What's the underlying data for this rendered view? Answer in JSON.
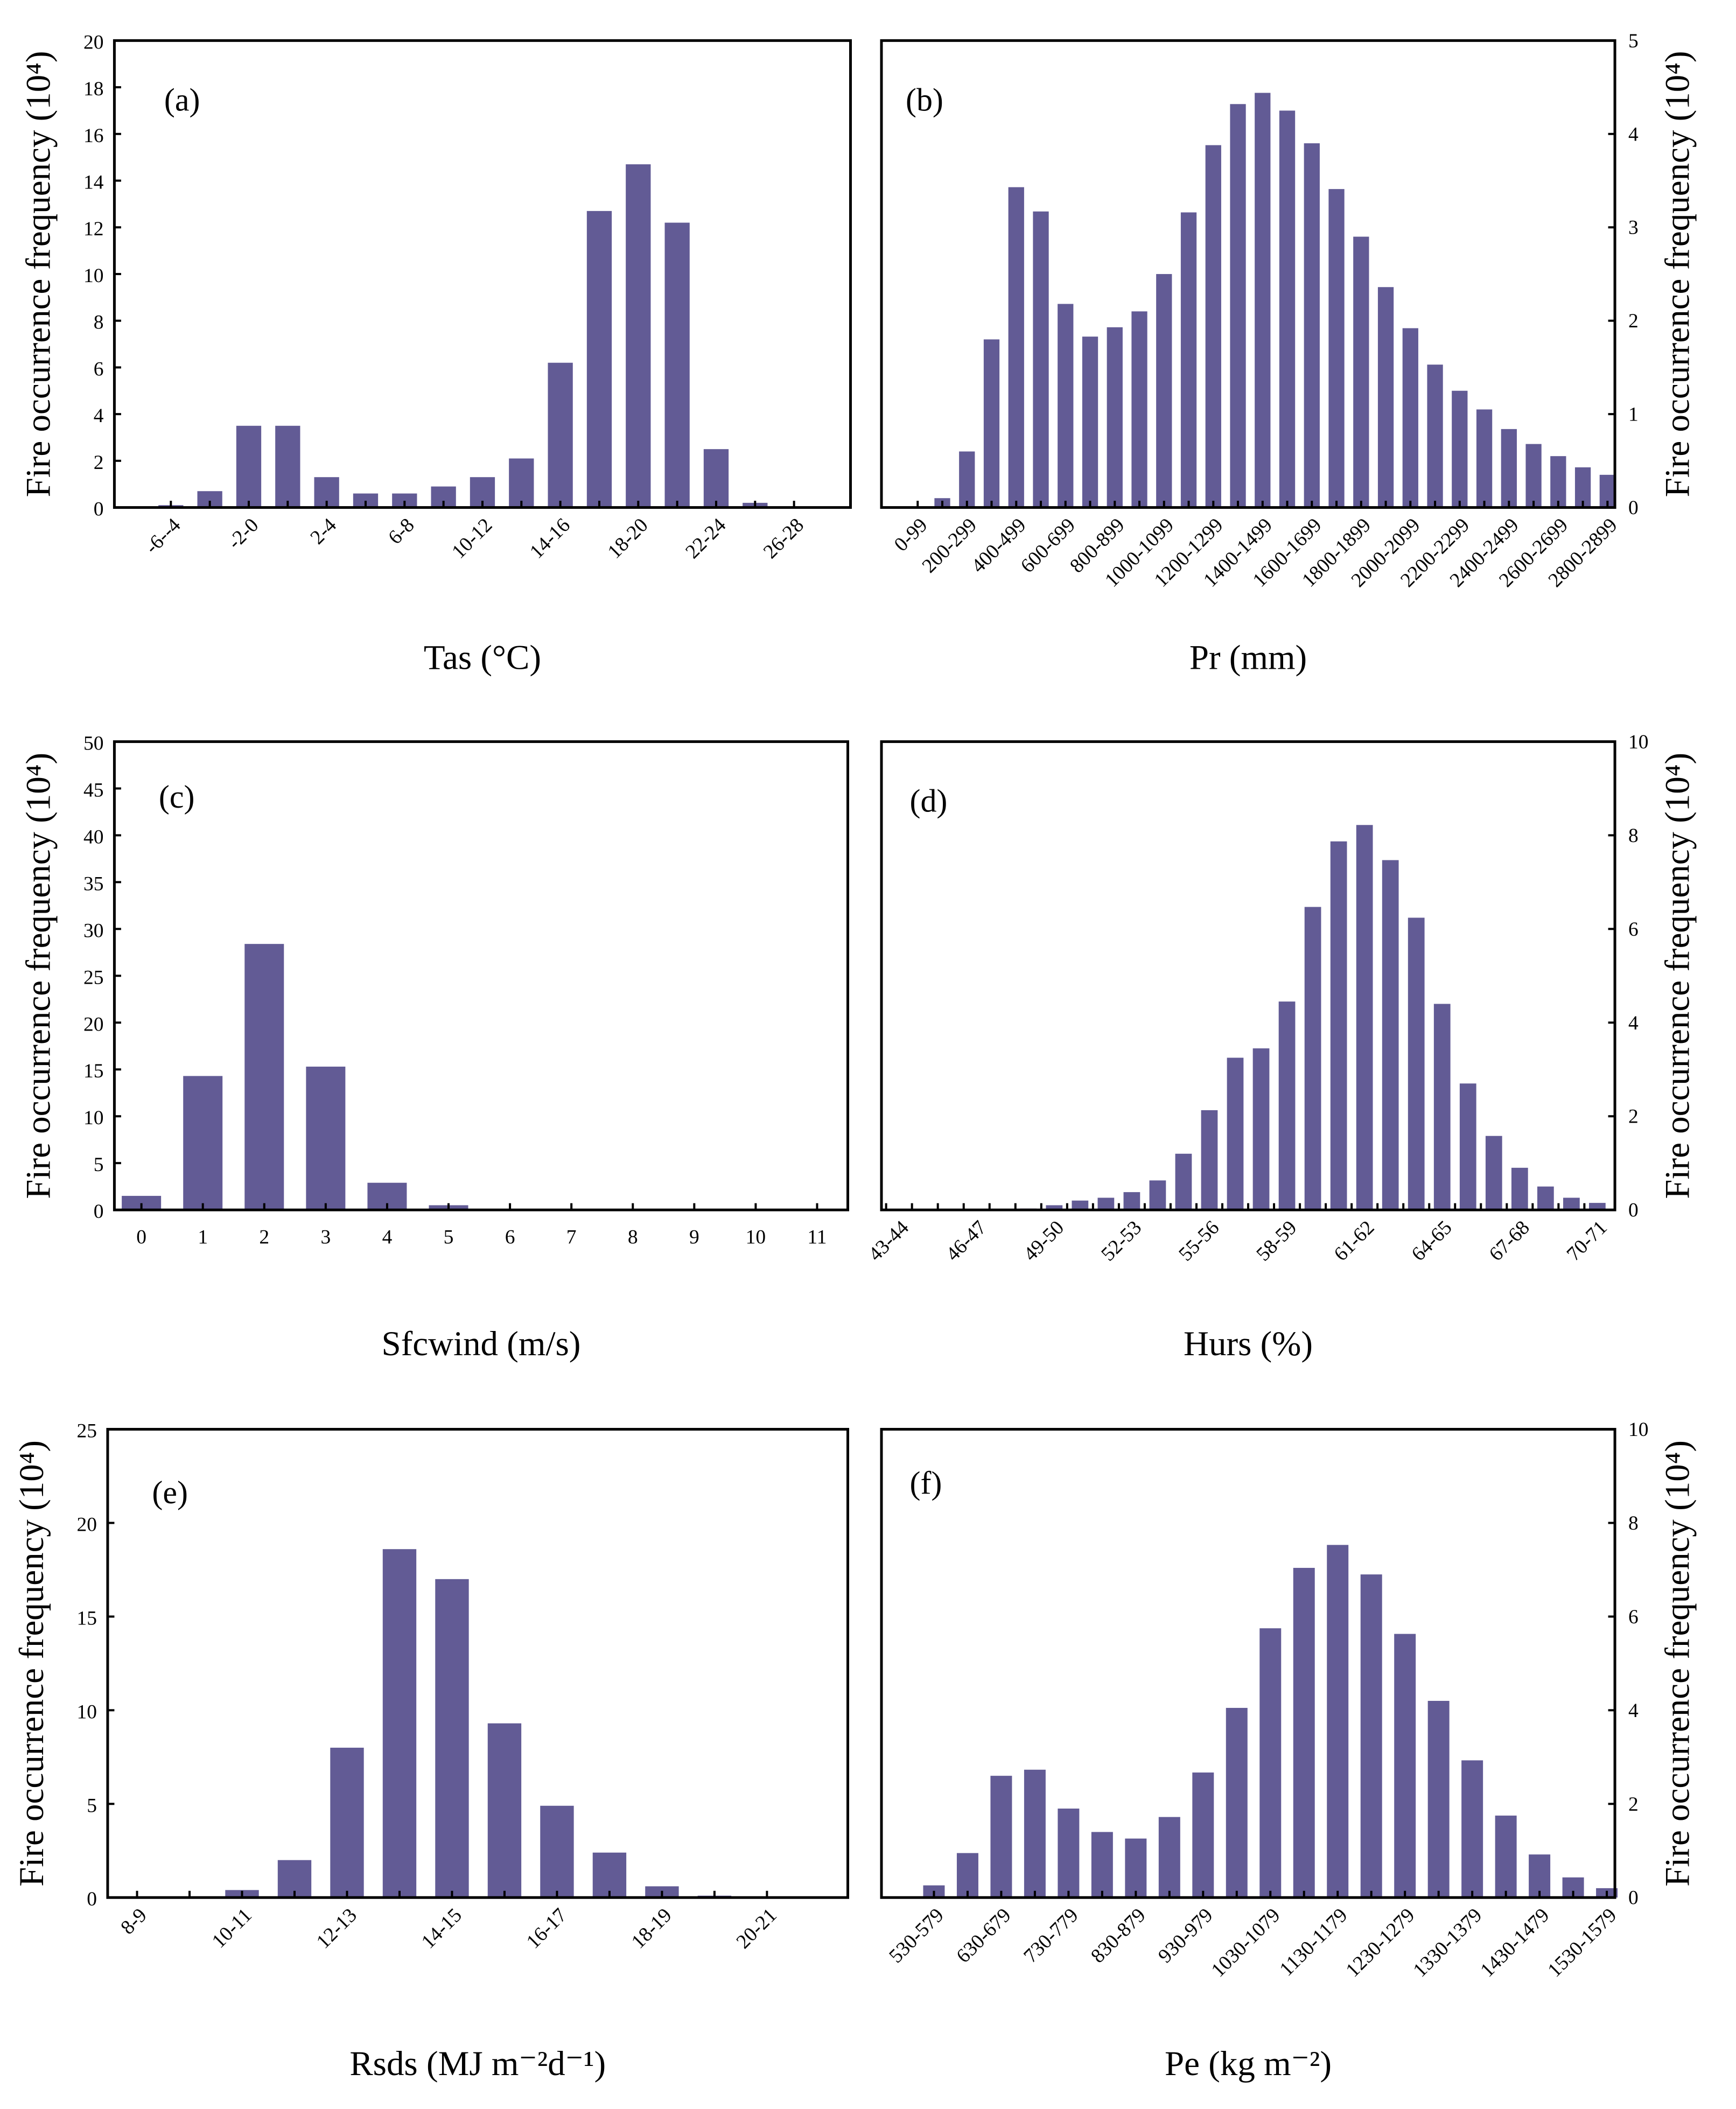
{
  "chart_data": [
    {
      "id": "a",
      "type": "bar",
      "panel_label": "(a)",
      "xlabel": "Tas (°C)",
      "ylabel": "Fire occurrence frequency (10⁴)",
      "yaxis": "left",
      "ylim": [
        0,
        20
      ],
      "ystep": 2,
      "label_every": 2,
      "categories": [
        "-6--4",
        "-4--2",
        "-2-0",
        "0-2",
        "2-4",
        "4-6",
        "6-8",
        "8-10",
        "10-12",
        "12-14",
        "14-16",
        "16-18",
        "18-20",
        "20-22",
        "22-24",
        "24-26",
        "26-28"
      ],
      "values": [
        0.1,
        0.7,
        3.5,
        3.5,
        1.3,
        0.6,
        0.6,
        0.9,
        1.3,
        2.1,
        6.2,
        12.7,
        14.7,
        12.2,
        2.5,
        0.2,
        0
      ]
    },
    {
      "id": "b",
      "type": "bar",
      "panel_label": "(b)",
      "xlabel": "Pr (mm)",
      "ylabel": "Fire occurrence frequency (10⁴)",
      "yaxis": "right",
      "ylim": [
        0,
        5
      ],
      "ystep": 1,
      "label_every": 2,
      "categories": [
        "0-99",
        "100-199",
        "200-299",
        "300-399",
        "400-499",
        "500-599",
        "600-699",
        "700-799",
        "800-899",
        "900-999",
        "1000-1099",
        "1100-1199",
        "1200-1299",
        "1300-1399",
        "1400-1499",
        "1500-1599",
        "1600-1699",
        "1700-1799",
        "1800-1899",
        "1900-1999",
        "2000-2099",
        "2100-2199",
        "2200-2299",
        "2300-2399",
        "2400-2499",
        "2500-2599",
        "2600-2699",
        "2700-2799",
        "2800-2899"
      ],
      "values": [
        0,
        0.1,
        0.6,
        1.8,
        3.43,
        3.17,
        2.18,
        1.83,
        1.93,
        2.1,
        2.5,
        3.16,
        3.88,
        4.32,
        4.44,
        4.25,
        3.9,
        3.41,
        2.9,
        2.36,
        1.92,
        1.53,
        1.25,
        1.05,
        0.84,
        0.68,
        0.55,
        0.43,
        0.35
      ]
    },
    {
      "id": "c",
      "type": "bar",
      "panel_label": "(c)",
      "xlabel": "Sfcwind (m/s)",
      "ylabel": "Fire occurrence frequency (10⁴)",
      "yaxis": "left",
      "ylim": [
        0,
        50
      ],
      "ystep": 5,
      "label_every": 1,
      "categories": [
        "0",
        "1",
        "2",
        "3",
        "4",
        "5",
        "6",
        "7",
        "8",
        "9",
        "10",
        "11"
      ],
      "values": [
        1.5,
        14.3,
        28.4,
        15.3,
        2.9,
        0.5,
        0,
        0,
        0,
        0,
        0,
        0
      ]
    },
    {
      "id": "d",
      "type": "bar",
      "panel_label": "(d)",
      "xlabel": "Hurs (%)",
      "ylabel": "Fire occurrence frequency (10⁴)",
      "yaxis": "right",
      "ylim": [
        0,
        10
      ],
      "ystep": 2,
      "label_every": 3,
      "categories": [
        "43-44",
        "44-45",
        "45-46",
        "46-47",
        "47-48",
        "48-49",
        "49-50",
        "50-51",
        "51-52",
        "52-53",
        "53-54",
        "54-55",
        "55-56",
        "56-57",
        "57-58",
        "58-59",
        "59-60",
        "60-61",
        "61-62",
        "62-63",
        "63-64",
        "64-65",
        "65-66",
        "66-67",
        "67-68",
        "68-69",
        "69-70",
        "70-71"
      ],
      "values": [
        0,
        0,
        0,
        0,
        0,
        0.03,
        0.1,
        0.2,
        0.26,
        0.38,
        0.63,
        1.2,
        2.13,
        3.25,
        3.45,
        4.45,
        6.47,
        7.87,
        8.22,
        7.47,
        6.24,
        4.4,
        2.7,
        1.58,
        0.9,
        0.5,
        0.26,
        0.15
      ]
    },
    {
      "id": "e",
      "type": "bar",
      "panel_label": "(e)",
      "xlabel": "Rsds (MJ m⁻²d⁻¹)",
      "ylabel": "Fire occurrence frequency (10⁴)",
      "yaxis": "left",
      "ylim": [
        0,
        25
      ],
      "ystep": 5,
      "label_every": 2,
      "categories": [
        "8-9",
        "9-10",
        "10-11",
        "11-12",
        "12-13",
        "13-14",
        "14-15",
        "15-16",
        "16-17",
        "17-18",
        "18-19",
        "19-20",
        "20-21"
      ],
      "values": [
        0,
        0,
        0.4,
        2.0,
        8.0,
        18.6,
        17.0,
        9.3,
        4.9,
        2.4,
        0.6,
        0.1,
        0
      ]
    },
    {
      "id": "f",
      "type": "bar",
      "panel_label": "(f)",
      "xlabel": "Pe (kg m⁻²)",
      "ylabel": "Fire occurrence frequency (10⁴)",
      "yaxis": "right",
      "ylim": [
        0,
        10
      ],
      "ystep": 2,
      "label_every": 2,
      "categories": [
        "530-579",
        "580-629",
        "630-679",
        "680-729",
        "730-779",
        "780-829",
        "830-879",
        "880-929",
        "930-979",
        "980-1029",
        "1030-1079",
        "1080-1129",
        "1130-1179",
        "1180-1229",
        "1230-1279",
        "1280-1329",
        "1330-1379",
        "1380-1429",
        "1430-1479",
        "1480-1529",
        "1530-1579"
      ],
      "values": [
        0.26,
        0.95,
        2.6,
        2.73,
        1.9,
        1.4,
        1.26,
        1.72,
        2.67,
        4.05,
        5.75,
        7.04,
        7.53,
        6.9,
        5.63,
        4.2,
        2.93,
        1.75,
        0.92,
        0.43,
        0.2
      ]
    }
  ],
  "colors": {
    "bar": "#625b95"
  }
}
